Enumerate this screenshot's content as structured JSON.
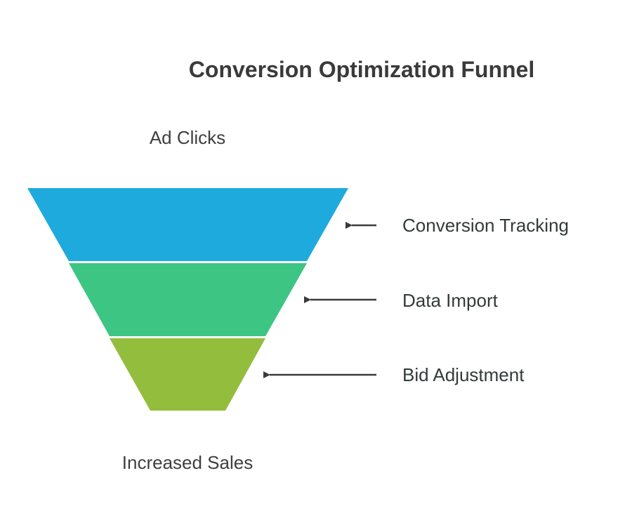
{
  "title": "Conversion Optimization Funnel",
  "top_caption": "Ad Clicks",
  "bottom_caption": "Increased Sales",
  "stages": [
    {
      "label": "Conversion Tracking",
      "color": "#1EAADC"
    },
    {
      "label": "Data Import",
      "color": "#3DC583"
    },
    {
      "label": "Bid Adjustment",
      "color": "#93BD3C"
    }
  ],
  "colors": {
    "title": "#3a3a3a",
    "caption": "#3f3f3f",
    "label": "#333a3a",
    "arrow": "#3a3a3a"
  }
}
